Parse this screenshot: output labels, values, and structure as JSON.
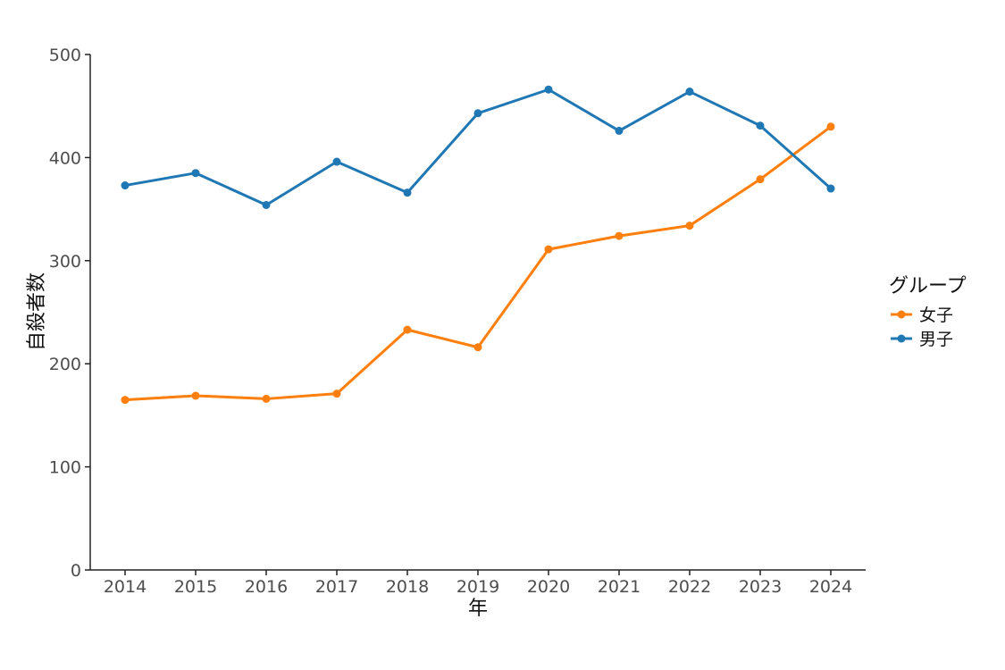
{
  "chart_data": {
    "type": "line",
    "xlabel": "年",
    "ylabel": "自殺者数",
    "x": [
      2014,
      2015,
      2016,
      2017,
      2018,
      2019,
      2020,
      2021,
      2022,
      2023,
      2024
    ],
    "ylim": [
      0,
      500
    ],
    "yticks": [
      0,
      100,
      200,
      300,
      400,
      500
    ],
    "grid": false,
    "legend": {
      "title": "グループ",
      "placement": "right"
    },
    "series": [
      {
        "name": "女子",
        "color": "#ff7f0e",
        "values": [
          165,
          169,
          166,
          171,
          233,
          216,
          311,
          324,
          334,
          379,
          430
        ]
      },
      {
        "name": "男子",
        "color": "#1f77b4",
        "values": [
          373,
          385,
          354,
          396,
          366,
          443,
          466,
          426,
          464,
          431,
          370
        ]
      }
    ]
  }
}
